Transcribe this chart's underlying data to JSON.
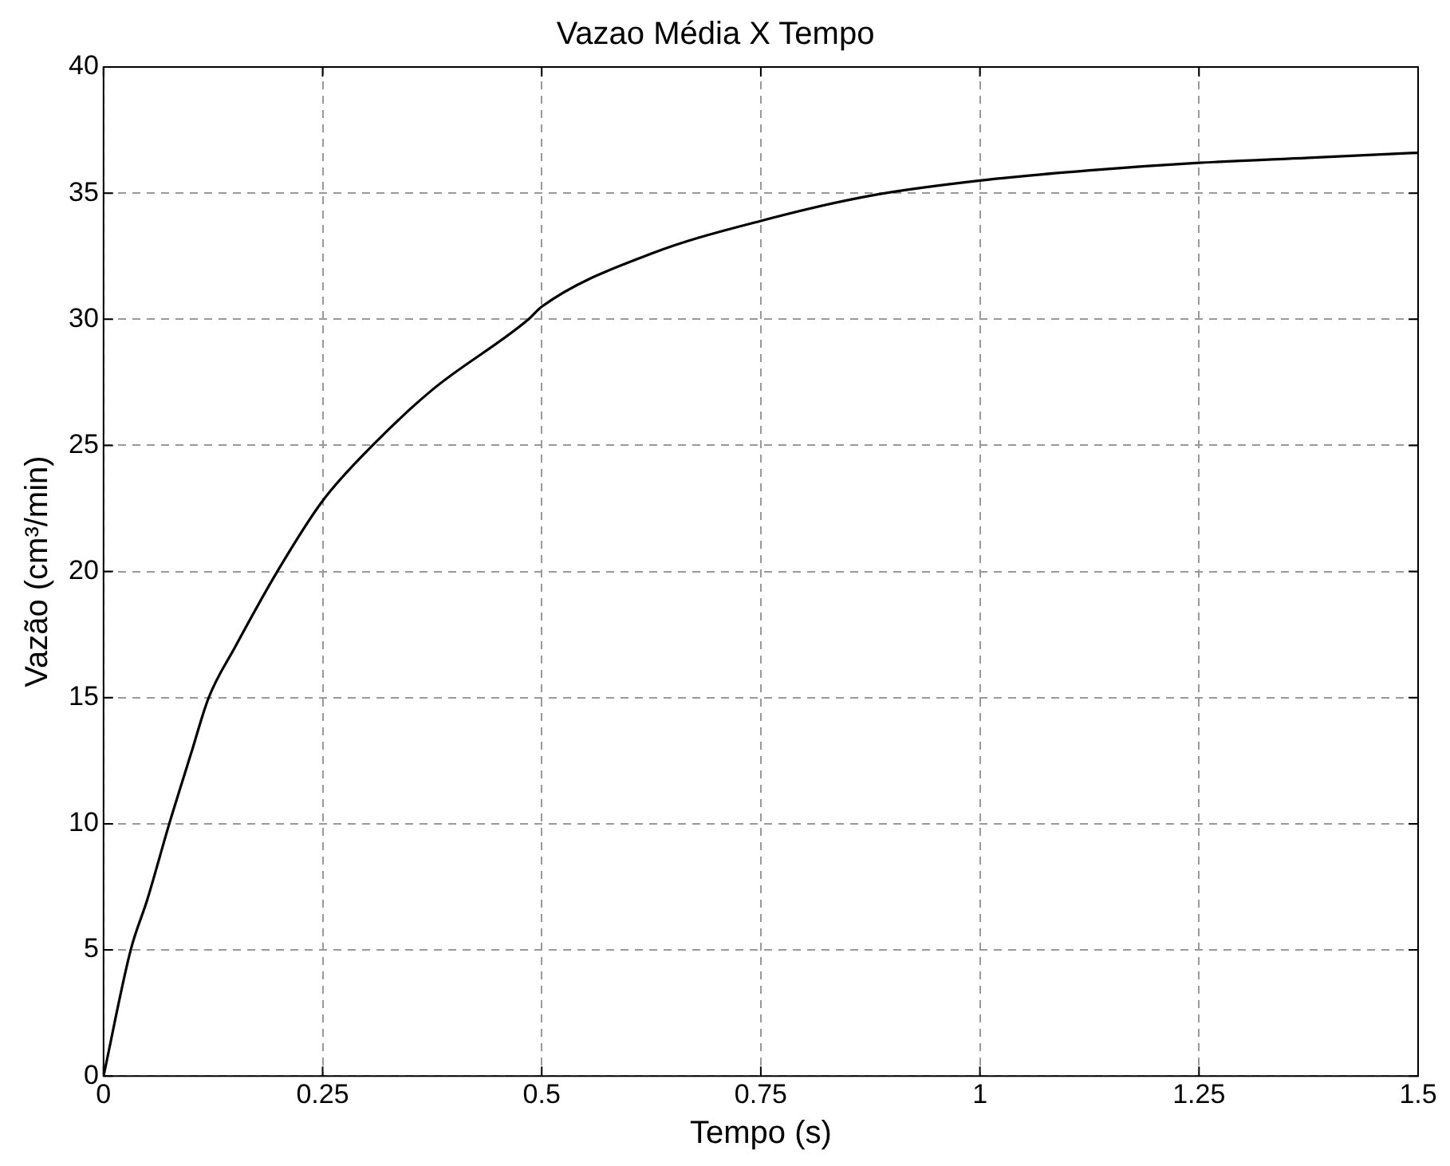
{
  "chart_data": {
    "type": "line",
    "title": "Vazao Média X Tempo",
    "xlabel": "Tempo (s)",
    "ylabel": "Vazão (cm³/min)",
    "x": [
      0,
      0.031,
      0.05,
      0.075,
      0.1,
      0.12,
      0.15,
      0.2,
      0.25,
      0.307,
      0.375,
      0.485,
      0.5,
      0.625,
      0.75,
      0.875,
      1.0,
      1.125,
      1.25,
      1.375,
      1.5
    ],
    "series": [
      {
        "color": "#000000",
        "values": [
          0,
          5,
          7,
          10,
          12.8,
          15,
          17,
          20.1,
          22.8,
          25,
          27.2,
          30,
          30.5,
          32.6,
          33.9,
          34.9,
          35.5,
          35.9,
          36.2,
          36.4,
          36.6
        ]
      }
    ],
    "xlim": [
      0,
      1.5
    ],
    "xticks": [
      0,
      0.25,
      0.5,
      0.75,
      1,
      1.25,
      1.5
    ],
    "ylim": [
      0,
      40
    ],
    "yticks": [
      0,
      5,
      10,
      15,
      20,
      25,
      30,
      35,
      40
    ],
    "grid": true,
    "legend": false,
    "marker": "none",
    "line_style": "solid"
  }
}
